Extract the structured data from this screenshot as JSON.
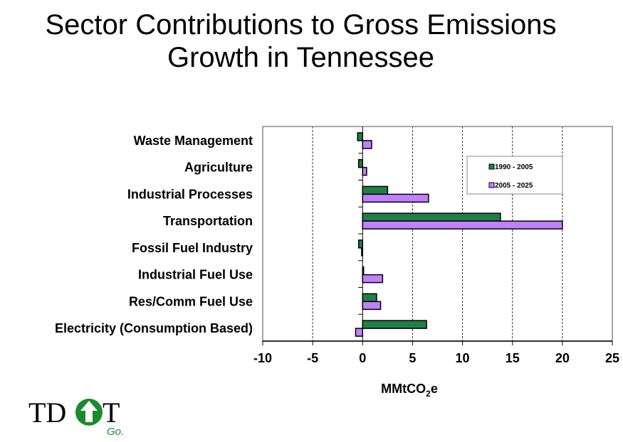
{
  "chart_data": {
    "type": "bar",
    "orientation": "horizontal",
    "title": "Sector Contributions to Gross Emissions Growth in Tennessee",
    "title_lines": [
      "Sector Contributions to Gross Emissions",
      "Growth in Tennessee"
    ],
    "xlabel": "MMtCO2e",
    "xlabel_parts": {
      "main": "MMtCO",
      "sub": "2",
      "tail": "e"
    },
    "ylabel": "",
    "categories": [
      "Waste Management",
      "Agriculture",
      "Industrial Processes",
      "Transportation",
      "Fossil Fuel Industry",
      "Industrial Fuel Use",
      "Res/Comm Fuel Use",
      "Electricity (Consumption Based)"
    ],
    "series": [
      {
        "name": "1990 - 2005",
        "color": "#1f8045",
        "values": [
          -0.5,
          -0.4,
          2.5,
          13.8,
          -0.4,
          0.1,
          1.4,
          6.4
        ]
      },
      {
        "name": "2005 - 2025",
        "color": "#c080ff",
        "values": [
          0.9,
          0.4,
          6.6,
          20.0,
          -0.1,
          2.0,
          1.8,
          -0.7
        ]
      }
    ],
    "xlim": [
      -10,
      25
    ],
    "xticks": [
      "-10",
      "-5",
      "0",
      "5",
      "10",
      "15",
      "20",
      "25"
    ],
    "grid": "vertical dashed",
    "legend": "top-right inside plot"
  },
  "logo": {
    "text_left": "TD",
    "text_right": "T",
    "tagline": "Go.",
    "color": "#1a8a2e"
  }
}
